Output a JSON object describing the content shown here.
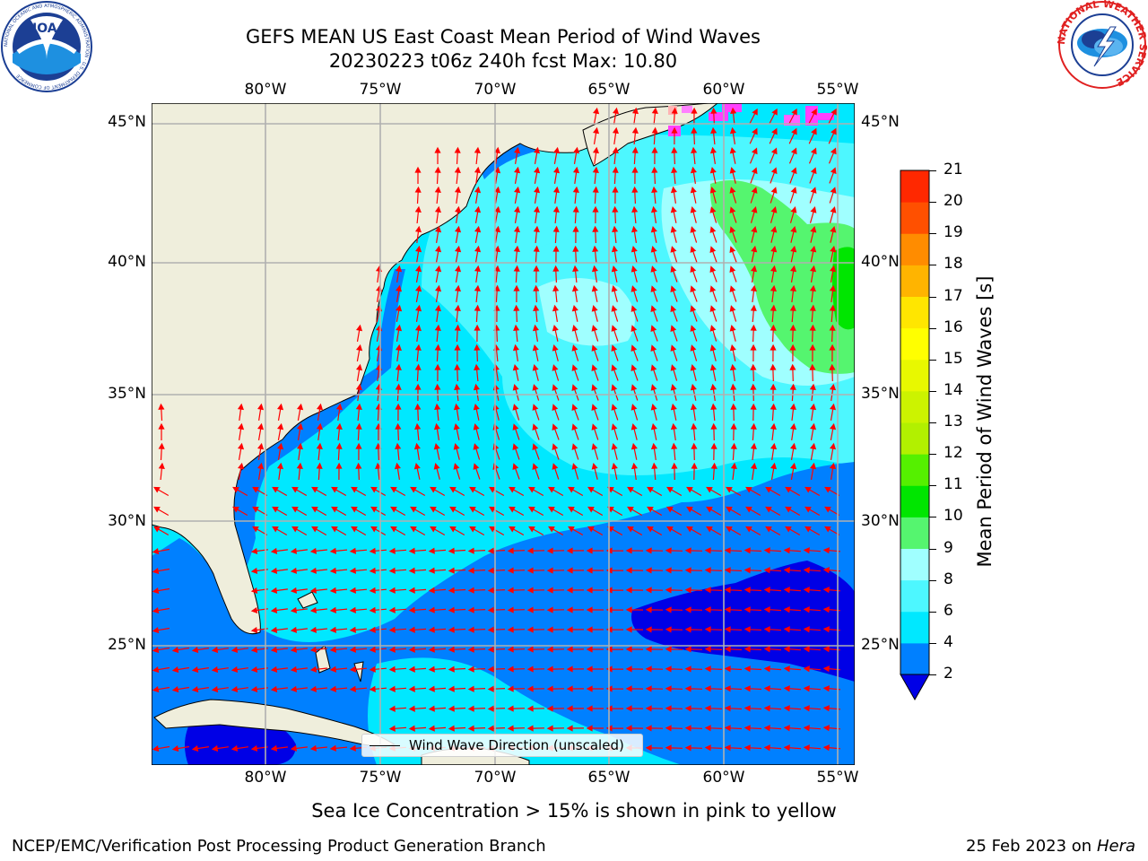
{
  "title": {
    "line1": "GEFS MEAN US East Coast Mean Period of Wind Waves",
    "line2": "20230223 t06z 240h fcst   Max: 10.80"
  },
  "map": {
    "lon_ticks": [
      "80°W",
      "75°W",
      "70°W",
      "65°W",
      "60°W",
      "55°W"
    ],
    "lat_ticks": [
      "45°N",
      "40°N",
      "35°N",
      "30°N",
      "25°N"
    ],
    "land_color": "#efeedc",
    "arrow_color": "#ff0000",
    "gridline_color": "#b0b0b0"
  },
  "legend": {
    "label": "Wind Wave Direction (unscaled)"
  },
  "colorbar": {
    "label": "Mean Period of Wind Waves [s]",
    "ticks": [
      "2",
      "4",
      "6",
      "8",
      "9",
      "10",
      "11",
      "12",
      "13",
      "14",
      "15",
      "16",
      "17",
      "18",
      "19",
      "20",
      "21"
    ],
    "colors": [
      "#0080ff",
      "#00e8ff",
      "#4df7ff",
      "#a0ffff",
      "#55f56f",
      "#00e600",
      "#55f000",
      "#b2f000",
      "#ccf300",
      "#e8f800",
      "#ffff00",
      "#ffe600",
      "#ffb400",
      "#ff8c00",
      "#ff5000",
      "#ff2800"
    ],
    "under_color": "#0000e6"
  },
  "footer": {
    "ice_note": "Sea Ice Concentration > 15% is shown in pink to yellow",
    "credit": "NCEP/EMC/Verification Post Processing Product Generation Branch",
    "date": "25 Feb 2023 on",
    "machine": "Hera"
  },
  "logos": {
    "noaa_text": "NOAA",
    "noaa_ring": "NATIONAL OCEANIC AND ATMOSPHERIC ADMINISTRATION · U.S. DEPARTMENT OF COMMERCE",
    "nws_ring": "NATIONAL WEATHER SERVICE"
  }
}
